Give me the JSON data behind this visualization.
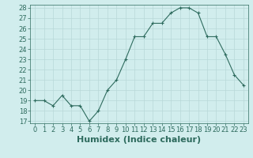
{
  "x": [
    0,
    1,
    2,
    3,
    4,
    5,
    6,
    7,
    8,
    9,
    10,
    11,
    12,
    13,
    14,
    15,
    16,
    17,
    18,
    19,
    20,
    21,
    22,
    23
  ],
  "y": [
    19.0,
    19.0,
    18.5,
    19.5,
    18.5,
    18.5,
    17.0,
    18.0,
    20.0,
    21.0,
    23.0,
    25.2,
    25.2,
    26.5,
    26.5,
    27.5,
    28.0,
    28.0,
    27.5,
    25.2,
    25.2,
    23.5,
    21.5,
    20.5
  ],
  "xlabel": "Humidex (Indice chaleur)",
  "ylim": [
    17,
    28
  ],
  "yticks": [
    17,
    18,
    19,
    20,
    21,
    22,
    23,
    24,
    25,
    26,
    27,
    28
  ],
  "xticks": [
    0,
    1,
    2,
    3,
    4,
    5,
    6,
    7,
    8,
    9,
    10,
    11,
    12,
    13,
    14,
    15,
    16,
    17,
    18,
    19,
    20,
    21,
    22,
    23
  ],
  "line_color": "#2e6b5e",
  "marker_color": "#2e6b5e",
  "bg_color": "#d1eded",
  "grid_color": "#b8d8d8",
  "tick_label_fontsize": 6.0,
  "xlabel_fontsize": 8.0
}
